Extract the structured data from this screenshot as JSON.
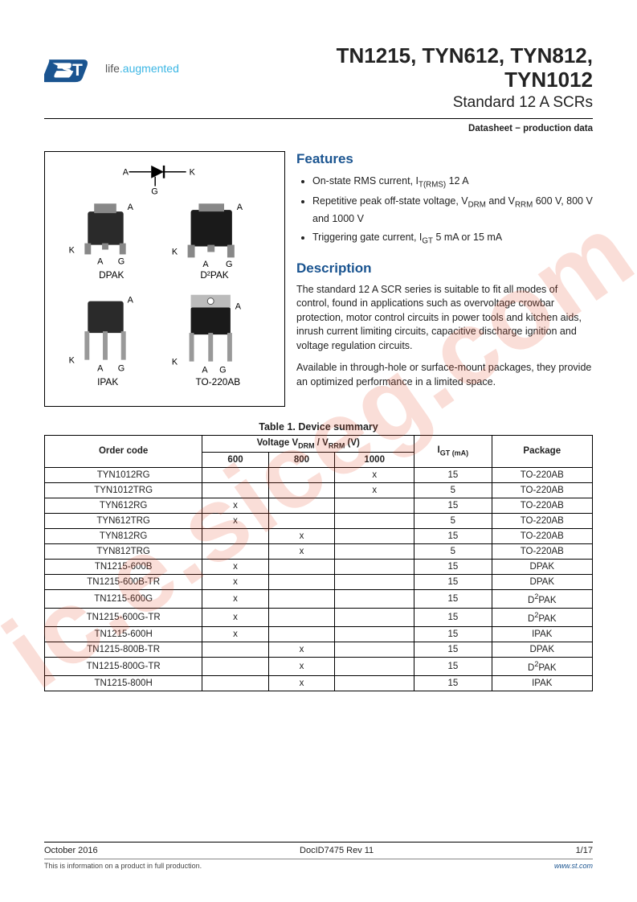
{
  "logo": {
    "tagline_pre": "life",
    "tagline_post": ".augmented"
  },
  "header": {
    "title_line1": "TN1215, TYN612, TYN812,",
    "title_line2": "TYN1012",
    "subtitle": "Standard 12 A SCRs",
    "doc_type": "Datasheet − production data"
  },
  "packages": {
    "pins": {
      "A": "A",
      "K": "K",
      "G": "G"
    },
    "names": [
      "DPAK",
      "D²PAK",
      "IPAK",
      "TO-220AB"
    ]
  },
  "features": {
    "heading": "Features",
    "items": [
      "On-state RMS current, I<sub>T(RMS)</sub> 12 A",
      "Repetitive peak off-state voltage, V<sub>DRM</sub> and V<sub>RRM</sub> 600 V, 800 V and 1000 V",
      "Triggering gate current, I<sub>GT</sub> 5 mA or 15 mA"
    ]
  },
  "description": {
    "heading": "Description",
    "p1": "The standard 12 A SCR series is suitable to fit all modes of control, found in applications such as overvoltage crowbar protection, motor control circuits in power tools and kitchen aids, inrush current limiting circuits, capacitive discharge ignition and voltage regulation circuits.",
    "p2": "Available in through-hole or surface-mount packages, they provide an optimized performance in a limited space."
  },
  "table": {
    "caption": "Table 1. Device summary",
    "header": {
      "order": "Order code",
      "voltage": "Voltage V<sub>DRM</sub> / V<sub>RRM</sub> (V)",
      "v600": "600",
      "v800": "800",
      "v1000": "1000",
      "igt": "I<sub>GT (mA)</sub>",
      "package": "Package"
    },
    "rows": [
      {
        "code": "TYN1012RG",
        "v600": "",
        "v800": "",
        "v1000": "x",
        "igt": "15",
        "pkg": "TO-220AB"
      },
      {
        "code": "TYN1012TRG",
        "v600": "",
        "v800": "",
        "v1000": "x",
        "igt": "5",
        "pkg": "TO-220AB"
      },
      {
        "code": "TYN612RG",
        "v600": "x",
        "v800": "",
        "v1000": "",
        "igt": "15",
        "pkg": "TO-220AB"
      },
      {
        "code": "TYN612TRG",
        "v600": "x",
        "v800": "",
        "v1000": "",
        "igt": "5",
        "pkg": "TO-220AB"
      },
      {
        "code": "TYN812RG",
        "v600": "",
        "v800": "x",
        "v1000": "",
        "igt": "15",
        "pkg": "TO-220AB"
      },
      {
        "code": "TYN812TRG",
        "v600": "",
        "v800": "x",
        "v1000": "",
        "igt": "5",
        "pkg": "TO-220AB"
      },
      {
        "code": "TN1215-600B",
        "v600": "x",
        "v800": "",
        "v1000": "",
        "igt": "15",
        "pkg": "DPAK"
      },
      {
        "code": "TN1215-600B-TR",
        "v600": "x",
        "v800": "",
        "v1000": "",
        "igt": "15",
        "pkg": "DPAK"
      },
      {
        "code": "TN1215-600G",
        "v600": "x",
        "v800": "",
        "v1000": "",
        "igt": "15",
        "pkg": "D<sup>2</sup>PAK"
      },
      {
        "code": "TN1215-600G-TR",
        "v600": "x",
        "v800": "",
        "v1000": "",
        "igt": "15",
        "pkg": "D<sup>2</sup>PAK"
      },
      {
        "code": "TN1215-600H",
        "v600": "x",
        "v800": "",
        "v1000": "",
        "igt": "15",
        "pkg": "IPAK"
      },
      {
        "code": "TN1215-800B-TR",
        "v600": "",
        "v800": "x",
        "v1000": "",
        "igt": "15",
        "pkg": "DPAK"
      },
      {
        "code": "TN1215-800G-TR",
        "v600": "",
        "v800": "x",
        "v1000": "",
        "igt": "15",
        "pkg": "D<sup>2</sup>PAK"
      },
      {
        "code": "TN1215-800H",
        "v600": "",
        "v800": "x",
        "v1000": "",
        "igt": "15",
        "pkg": "IPAK"
      }
    ]
  },
  "footer": {
    "date": "October 2016",
    "docid": "DocID7475 Rev 11",
    "page": "1/17",
    "note": "This is information on a product in full production.",
    "url": "www.st.com"
  },
  "watermark": "ic.e.siceg.com"
}
